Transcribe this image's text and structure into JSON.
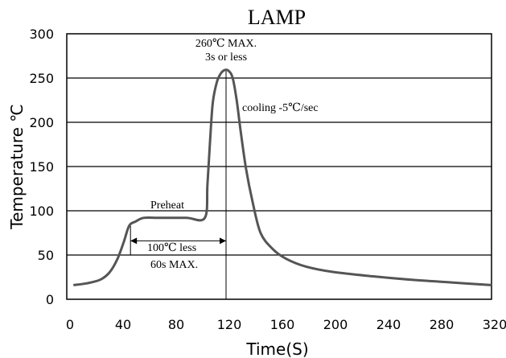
{
  "chart_data": {
    "type": "line",
    "title": "LAMP",
    "xlabel": "Time(S)",
    "ylabel": "Temperature ℃",
    "xlim": [
      0,
      320
    ],
    "ylim": [
      0,
      300
    ],
    "x_ticks": [
      0,
      40,
      80,
      120,
      160,
      200,
      240,
      280,
      320
    ],
    "y_ticks": [
      0,
      50,
      100,
      150,
      200,
      250,
      300
    ],
    "grid": "horizontal",
    "series": [
      {
        "color": "#555555",
        "points": [
          [
            5,
            16
          ],
          [
            15,
            18
          ],
          [
            25,
            22
          ],
          [
            32,
            30
          ],
          [
            38,
            45
          ],
          [
            43,
            65
          ],
          [
            47,
            83
          ],
          [
            52,
            88
          ],
          [
            58,
            92
          ],
          [
            70,
            92
          ],
          [
            90,
            92
          ],
          [
            104,
            92
          ],
          [
            106,
            130
          ],
          [
            108,
            180
          ],
          [
            110,
            222
          ],
          [
            113,
            245
          ],
          [
            116,
            255
          ],
          [
            119,
            259
          ],
          [
            122,
            258
          ],
          [
            125,
            250
          ],
          [
            128,
            225
          ],
          [
            131,
            190
          ],
          [
            135,
            148
          ],
          [
            140,
            110
          ],
          [
            146,
            75
          ],
          [
            155,
            57
          ],
          [
            165,
            46
          ],
          [
            180,
            37
          ],
          [
            200,
            31
          ],
          [
            230,
            26
          ],
          [
            260,
            22
          ],
          [
            290,
            19
          ],
          [
            320,
            16
          ]
        ]
      }
    ],
    "annotations": {
      "peak_line1": "260℃ MAX.",
      "peak_line2": "3s or less",
      "cooling": "cooling -5℃/sec",
      "preheat": "Preheat",
      "window": "100℃ less",
      "window_max": "60s MAX."
    },
    "reference_line_x": 120,
    "window_range_x": [
      48,
      120
    ],
    "window_y": 66
  }
}
